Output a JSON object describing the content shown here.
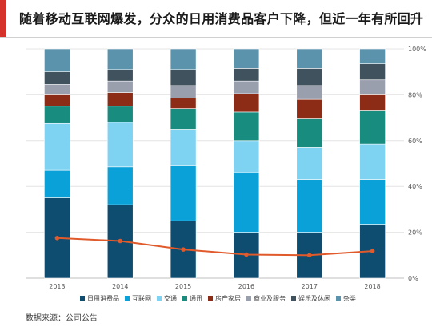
{
  "title": "随着移动互联网爆发，分众的日用消费品客户下降，但近一年有所回升",
  "source": "数据来源：公司公告",
  "chart_data": {
    "type": "bar",
    "stacked": true,
    "overlay_line": true,
    "categories": [
      "2013",
      "2014",
      "2015",
      "2016",
      "2017",
      "2018"
    ],
    "y_ticks": [
      "0%",
      "20%",
      "40%",
      "60%",
      "80%",
      "100%"
    ],
    "ylim": [
      0,
      100
    ],
    "legend_position": "bottom",
    "series": [
      {
        "name": "日用消费品",
        "color": "#0e4d70",
        "values": [
          35,
          32,
          25,
          20,
          20,
          23.5
        ]
      },
      {
        "name": "互联网",
        "color": "#0aa1d8",
        "values": [
          12,
          16.5,
          24,
          26,
          23,
          19.5
        ]
      },
      {
        "name": "交通",
        "color": "#7fd3f2",
        "values": [
          20.5,
          19.5,
          16,
          14,
          14,
          15.5
        ]
      },
      {
        "name": "通讯",
        "color": "#188c7f",
        "values": [
          7.5,
          7,
          9,
          12.5,
          12.5,
          14.5
        ]
      },
      {
        "name": "房产家居",
        "color": "#8c2c17",
        "values": [
          5,
          6,
          4.5,
          8,
          8.5,
          7
        ]
      },
      {
        "name": "商业及服务",
        "color": "#9a9fae",
        "values": [
          4.5,
          5,
          5.5,
          5.5,
          6,
          6.5
        ]
      },
      {
        "name": "娱乐及休闲",
        "color": "#41525f",
        "values": [
          5.5,
          5,
          7,
          5.5,
          7.5,
          7
        ]
      },
      {
        "name": "杂类",
        "color": "#5b93ad",
        "values": [
          10,
          9,
          9,
          8.5,
          8.5,
          6.5
        ]
      }
    ],
    "line": {
      "color": "#e05a2b",
      "values": [
        17.5,
        16.2,
        12.5,
        10.3,
        10,
        11.8
      ]
    }
  }
}
